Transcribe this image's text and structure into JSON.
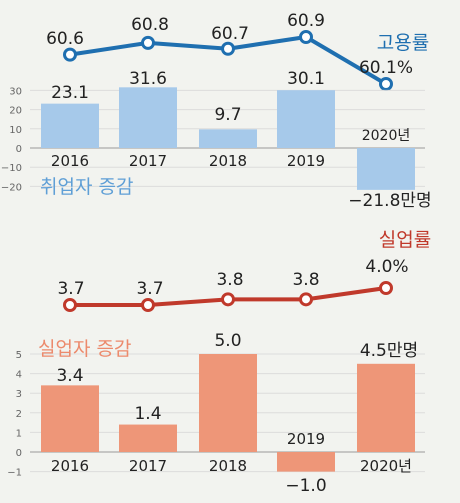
{
  "chart_data": [
    {
      "type": "line",
      "label": "고용률",
      "x": [
        "2016",
        "2017",
        "2018",
        "2019",
        "2020"
      ],
      "values": [
        60.6,
        60.8,
        60.7,
        60.9,
        60.1
      ],
      "value_labels": [
        "60.6",
        "60.8",
        "60.7",
        "60.9",
        "60.1%"
      ],
      "color": "#1f6fb0"
    },
    {
      "type": "bar",
      "label": "취업자 증감",
      "categories": [
        "2016",
        "2017",
        "2018",
        "2019",
        "2020년"
      ],
      "values": [
        23.1,
        31.6,
        9.7,
        30.1,
        -21.8
      ],
      "value_labels": [
        "23.1",
        "31.6",
        "9.7",
        "30.1",
        "−21.8만명"
      ],
      "yticks": [
        "30",
        "20",
        "10",
        "0",
        "−10",
        "−20"
      ],
      "ylim": [
        -25,
        35
      ],
      "color": "#a6c9ea"
    },
    {
      "type": "line",
      "label": "실업률",
      "x": [
        "2016",
        "2017",
        "2018",
        "2019",
        "2020"
      ],
      "values": [
        3.7,
        3.7,
        3.8,
        3.8,
        4.0
      ],
      "value_labels": [
        "3.7",
        "3.7",
        "3.8",
        "3.8",
        "4.0%"
      ],
      "color": "#c0392b"
    },
    {
      "type": "bar",
      "label": "실업자 증감",
      "categories": [
        "2016",
        "2017",
        "2018",
        "2019",
        "2020년"
      ],
      "values": [
        3.4,
        1.4,
        5.0,
        -1.0,
        4.5
      ],
      "value_labels": [
        "3.4",
        "1.4",
        "5.0",
        "−1.0",
        "4.5만명"
      ],
      "yticks": [
        "5",
        "4",
        "3",
        "2",
        "1",
        "0",
        "−1"
      ],
      "ylim": [
        -1.3,
        5.5
      ],
      "color": "#ee9678"
    }
  ]
}
